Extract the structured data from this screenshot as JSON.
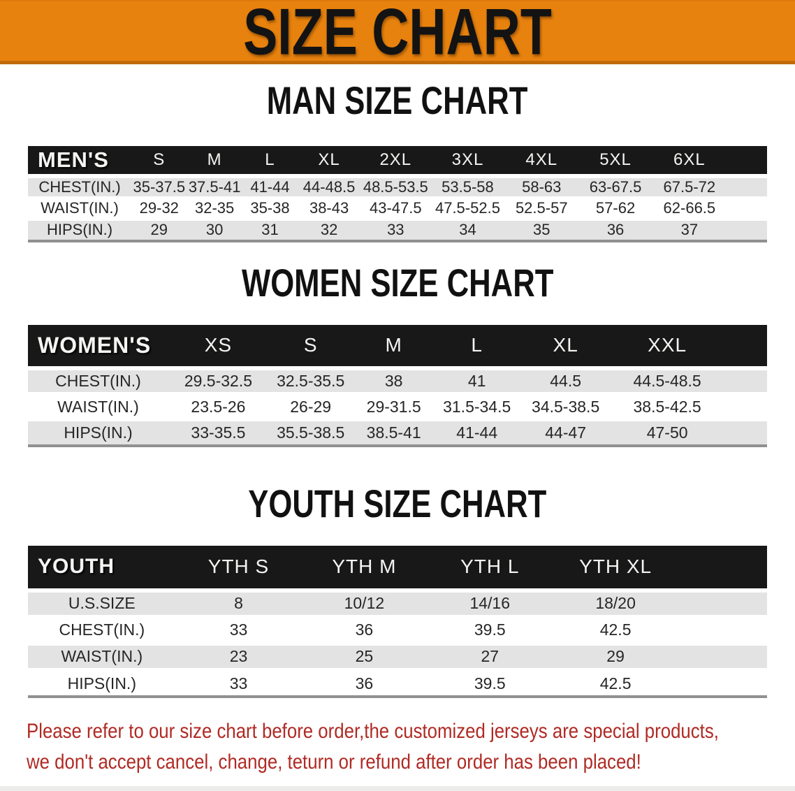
{
  "banner": {
    "title": "SIZE CHART"
  },
  "sections": {
    "man_title": "MAN SIZE CHART",
    "women_title": "WOMEN SIZE CHART",
    "youth_title": "YOUTH SIZE CHART"
  },
  "tables": {
    "men": {
      "label": "MEN'S",
      "sizes": [
        "S",
        "M",
        "L",
        "XL",
        "2XL",
        "3XL",
        "4XL",
        "5XL",
        "6XL"
      ],
      "rows": [
        {
          "label": "CHEST(IN.)",
          "values": [
            "35-37.5",
            "37.5-41",
            "41-44",
            "44-48.5",
            "48.5-53.5",
            "53.5-58",
            "58-63",
            "63-67.5",
            "67.5-72"
          ]
        },
        {
          "label": "WAIST(IN.)",
          "values": [
            "29-32",
            "32-35",
            "35-38",
            "38-43",
            "43-47.5",
            "47.5-52.5",
            "52.5-57",
            "57-62",
            "62-66.5"
          ]
        },
        {
          "label": "HIPS(IN.)",
          "values": [
            "29",
            "30",
            "31",
            "32",
            "33",
            "34",
            "35",
            "36",
            "37"
          ]
        }
      ]
    },
    "women": {
      "label": "WOMEN'S",
      "sizes": [
        "XS",
        "S",
        "M",
        "L",
        "XL",
        "XXL"
      ],
      "rows": [
        {
          "label": "CHEST(IN.)",
          "values": [
            "29.5-32.5",
            "32.5-35.5",
            "38",
            "41",
            "44.5",
            "44.5-48.5"
          ]
        },
        {
          "label": "WAIST(IN.)",
          "values": [
            "23.5-26",
            "26-29",
            "29-31.5",
            "31.5-34.5",
            "34.5-38.5",
            "38.5-42.5"
          ]
        },
        {
          "label": "HIPS(IN.)",
          "values": [
            "33-35.5",
            "35.5-38.5",
            "38.5-41",
            "41-44",
            "44-47",
            "47-50"
          ]
        }
      ]
    },
    "youth": {
      "label": "YOUTH",
      "sizes": [
        "YTH S",
        "YTH M",
        "YTH L",
        "YTH XL"
      ],
      "rows": [
        {
          "label": "U.S.SIZE",
          "values": [
            "8",
            "10/12",
            "14/16",
            "18/20"
          ]
        },
        {
          "label": "CHEST(IN.)",
          "values": [
            "33",
            "36",
            "39.5",
            "42.5"
          ]
        },
        {
          "label": "WAIST(IN.)",
          "values": [
            "23",
            "25",
            "27",
            "29"
          ]
        },
        {
          "label": "HIPS(IN.)",
          "values": [
            "33",
            "36",
            "39.5",
            "42.5"
          ]
        }
      ]
    }
  },
  "disclaimer": {
    "line1": "Please refer to our size chart before order,the customized jerseys are special products,",
    "line2": "we don't accept cancel, change, teturn or refund after order has been placed!"
  },
  "colors": {
    "banner_bg": "#E8820E",
    "banner_border": "#C06A0A",
    "header_bar": "#181818",
    "stripe_row": "#E3E3E3",
    "disclaimer_text": "#B02A24",
    "title_text": "#111111"
  }
}
